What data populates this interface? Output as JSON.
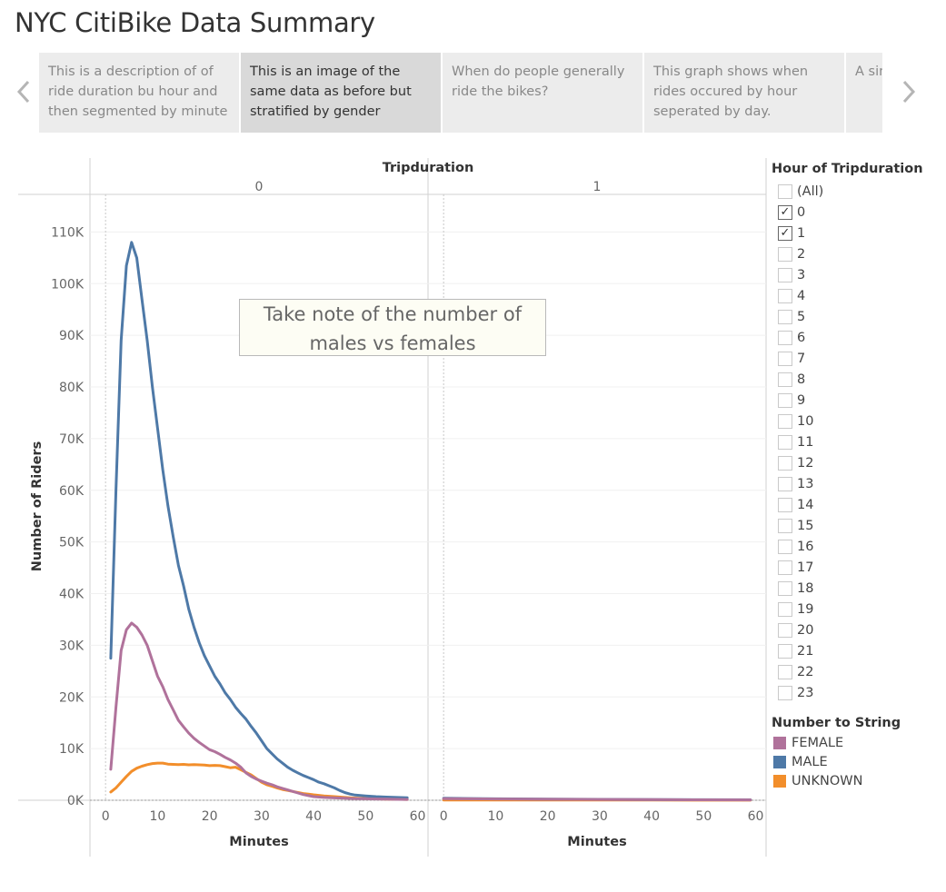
{
  "page_title": "NYC CitiBike Data Summary",
  "story": {
    "points": [
      {
        "text": "This is a description of of ride duration bu hour and then segmented by minute",
        "active": false
      },
      {
        "text": "This is an image of the same data as before but stratified by gender",
        "active": true
      },
      {
        "text": "When do people generally ride the bikes?",
        "active": false
      },
      {
        "text": "This graph shows when rides occured by hour seperated by day.",
        "active": false
      },
      {
        "text": "A simi when and da",
        "active": false
      }
    ],
    "prev_icon": "chevron-left-icon",
    "next_icon": "chevron-right-icon"
  },
  "annotation": {
    "line1": "Take note of the number of",
    "line2": "males vs females"
  },
  "filter": {
    "title": "Hour of Tripduration",
    "items": [
      {
        "label": "(All)",
        "checked": false
      },
      {
        "label": "0",
        "checked": true
      },
      {
        "label": "1",
        "checked": true
      },
      {
        "label": "2",
        "checked": false
      },
      {
        "label": "3",
        "checked": false
      },
      {
        "label": "4",
        "checked": false
      },
      {
        "label": "5",
        "checked": false
      },
      {
        "label": "6",
        "checked": false
      },
      {
        "label": "7",
        "checked": false
      },
      {
        "label": "8",
        "checked": false
      },
      {
        "label": "9",
        "checked": false
      },
      {
        "label": "10",
        "checked": false
      },
      {
        "label": "11",
        "checked": false
      },
      {
        "label": "12",
        "checked": false
      },
      {
        "label": "13",
        "checked": false
      },
      {
        "label": "14",
        "checked": false
      },
      {
        "label": "15",
        "checked": false
      },
      {
        "label": "16",
        "checked": false
      },
      {
        "label": "17",
        "checked": false
      },
      {
        "label": "18",
        "checked": false
      },
      {
        "label": "19",
        "checked": false
      },
      {
        "label": "20",
        "checked": false
      },
      {
        "label": "21",
        "checked": false
      },
      {
        "label": "22",
        "checked": false
      },
      {
        "label": "23",
        "checked": false
      }
    ]
  },
  "chart_data": {
    "type": "line",
    "column_header": "Tripduration",
    "panels": [
      "0",
      "1"
    ],
    "xlabel": "Minutes",
    "ylabel": "Number of Riders",
    "xlim": [
      -3,
      62
    ],
    "ylim": [
      0,
      115000
    ],
    "x_ticks": [
      0,
      10,
      20,
      30,
      40,
      50,
      60
    ],
    "y_ticks": [
      0,
      10000,
      20000,
      30000,
      40000,
      50000,
      60000,
      70000,
      80000,
      90000,
      100000,
      110000
    ],
    "y_tick_labels": [
      "0K",
      "10K",
      "20K",
      "30K",
      "40K",
      "50K",
      "60K",
      "70K",
      "80K",
      "90K",
      "100K",
      "110K"
    ],
    "grid": true,
    "legend_title": "Number to String",
    "series": [
      {
        "name": "FEMALE",
        "color": "#b0729b",
        "panel0": [
          [
            1,
            6000
          ],
          [
            2,
            18000
          ],
          [
            3,
            29000
          ],
          [
            4,
            33000
          ],
          [
            5,
            34300
          ],
          [
            6,
            33500
          ],
          [
            7,
            32000
          ],
          [
            8,
            30000
          ],
          [
            9,
            27000
          ],
          [
            10,
            24000
          ],
          [
            11,
            22000
          ],
          [
            12,
            19500
          ],
          [
            13,
            17500
          ],
          [
            14,
            15500
          ],
          [
            15,
            14200
          ],
          [
            16,
            13000
          ],
          [
            17,
            12000
          ],
          [
            18,
            11200
          ],
          [
            19,
            10500
          ],
          [
            20,
            9800
          ],
          [
            21,
            9400
          ],
          [
            22,
            8900
          ],
          [
            23,
            8300
          ],
          [
            24,
            7800
          ],
          [
            25,
            7200
          ],
          [
            26,
            6400
          ],
          [
            27,
            5300
          ],
          [
            28,
            4600
          ],
          [
            29,
            4100
          ],
          [
            30,
            3700
          ],
          [
            31,
            3300
          ],
          [
            32,
            3000
          ],
          [
            33,
            2600
          ],
          [
            34,
            2300
          ],
          [
            35,
            2000
          ],
          [
            36,
            1700
          ],
          [
            37,
            1400
          ],
          [
            38,
            1100
          ],
          [
            39,
            900
          ],
          [
            40,
            700
          ],
          [
            42,
            550
          ],
          [
            44,
            450
          ],
          [
            46,
            380
          ],
          [
            48,
            320
          ],
          [
            50,
            280
          ],
          [
            52,
            240
          ],
          [
            54,
            210
          ],
          [
            56,
            180
          ],
          [
            58,
            150
          ]
        ],
        "panel1": [
          [
            0,
            320
          ],
          [
            5,
            280
          ],
          [
            10,
            240
          ],
          [
            20,
            190
          ],
          [
            30,
            150
          ],
          [
            40,
            120
          ],
          [
            50,
            90
          ],
          [
            59,
            70
          ]
        ]
      },
      {
        "name": "MALE",
        "color": "#4e79a7",
        "panel0": [
          [
            1,
            27500
          ],
          [
            2,
            60000
          ],
          [
            3,
            89000
          ],
          [
            4,
            103500
          ],
          [
            5,
            108000
          ],
          [
            6,
            105000
          ],
          [
            7,
            97000
          ],
          [
            8,
            89000
          ],
          [
            9,
            80000
          ],
          [
            10,
            72000
          ],
          [
            11,
            64000
          ],
          [
            12,
            57000
          ],
          [
            13,
            51000
          ],
          [
            14,
            45500
          ],
          [
            15,
            41500
          ],
          [
            16,
            37000
          ],
          [
            17,
            33500
          ],
          [
            18,
            30500
          ],
          [
            19,
            28000
          ],
          [
            20,
            26000
          ],
          [
            21,
            24000
          ],
          [
            22,
            22500
          ],
          [
            23,
            20800
          ],
          [
            24,
            19500
          ],
          [
            25,
            18000
          ],
          [
            26,
            16800
          ],
          [
            27,
            15700
          ],
          [
            28,
            14300
          ],
          [
            29,
            13000
          ],
          [
            30,
            11500
          ],
          [
            31,
            10000
          ],
          [
            32,
            9000
          ],
          [
            33,
            8000
          ],
          [
            34,
            7200
          ],
          [
            35,
            6400
          ],
          [
            36,
            5800
          ],
          [
            37,
            5300
          ],
          [
            38,
            4800
          ],
          [
            39,
            4400
          ],
          [
            40,
            4000
          ],
          [
            41,
            3500
          ],
          [
            42,
            3200
          ],
          [
            43,
            2800
          ],
          [
            44,
            2400
          ],
          [
            45,
            1900
          ],
          [
            46,
            1500
          ],
          [
            47,
            1200
          ],
          [
            48,
            1000
          ],
          [
            50,
            850
          ],
          [
            52,
            700
          ],
          [
            54,
            620
          ],
          [
            56,
            540
          ],
          [
            58,
            470
          ]
        ],
        "panel1": [
          [
            0,
            380
          ],
          [
            5,
            330
          ],
          [
            10,
            280
          ],
          [
            20,
            220
          ],
          [
            30,
            170
          ],
          [
            40,
            130
          ],
          [
            50,
            100
          ],
          [
            59,
            80
          ]
        ]
      },
      {
        "name": "UNKNOWN",
        "color": "#f28e2b",
        "panel0": [
          [
            1,
            1600
          ],
          [
            2,
            2400
          ],
          [
            3,
            3500
          ],
          [
            4,
            4600
          ],
          [
            5,
            5600
          ],
          [
            6,
            6200
          ],
          [
            7,
            6600
          ],
          [
            8,
            6900
          ],
          [
            9,
            7100
          ],
          [
            10,
            7200
          ],
          [
            11,
            7200
          ],
          [
            12,
            7000
          ],
          [
            13,
            6950
          ],
          [
            14,
            6900
          ],
          [
            15,
            6950
          ],
          [
            16,
            6850
          ],
          [
            17,
            6900
          ],
          [
            18,
            6850
          ],
          [
            19,
            6800
          ],
          [
            20,
            6700
          ],
          [
            21,
            6750
          ],
          [
            22,
            6700
          ],
          [
            23,
            6500
          ],
          [
            24,
            6300
          ],
          [
            25,
            6400
          ],
          [
            26,
            5900
          ],
          [
            27,
            5400
          ],
          [
            28,
            4900
          ],
          [
            29,
            4200
          ],
          [
            30,
            3500
          ],
          [
            31,
            3000
          ],
          [
            32,
            2700
          ],
          [
            33,
            2400
          ],
          [
            34,
            2100
          ],
          [
            35,
            1900
          ],
          [
            36,
            1700
          ],
          [
            37,
            1500
          ],
          [
            38,
            1300
          ],
          [
            39,
            1200
          ],
          [
            40,
            1050
          ],
          [
            42,
            850
          ],
          [
            44,
            700
          ],
          [
            46,
            550
          ],
          [
            48,
            430
          ],
          [
            50,
            340
          ],
          [
            52,
            280
          ],
          [
            54,
            230
          ],
          [
            56,
            190
          ],
          [
            58,
            160
          ]
        ],
        "panel1": [
          [
            0,
            60
          ],
          [
            10,
            50
          ],
          [
            20,
            40
          ],
          [
            30,
            35
          ],
          [
            40,
            30
          ],
          [
            50,
            25
          ],
          [
            59,
            20
          ]
        ]
      }
    ]
  }
}
